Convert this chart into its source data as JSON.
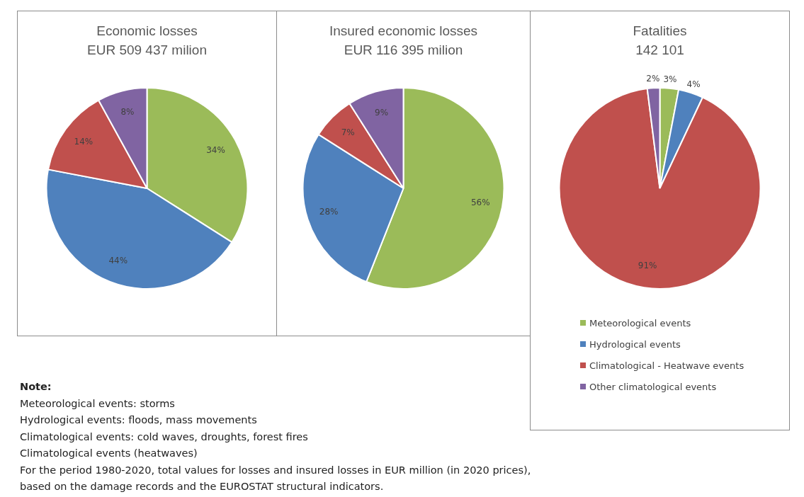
{
  "chart_data": [
    {
      "type": "pie",
      "title": "Economic losses",
      "subtitle": "EUR 509 437 milion",
      "categories": [
        null,
        null,
        null,
        null
      ],
      "values": [
        34,
        44,
        14,
        8
      ],
      "value_labels": [
        "34%",
        "44%",
        "14%",
        "8%"
      ],
      "colors": [
        "#9bbb59",
        "#4f81bd",
        "#c0504d",
        "#8064a2"
      ],
      "legend": false
    },
    {
      "type": "pie",
      "title": "Insured economic losses",
      "subtitle": "EUR 116 395 milion",
      "categories": [
        null,
        null,
        null,
        null
      ],
      "values": [
        56,
        28,
        7,
        9
      ],
      "value_labels": [
        "56%",
        "28%",
        "7%",
        "9%"
      ],
      "colors": [
        "#9bbb59",
        "#4f81bd",
        "#c0504d",
        "#8064a2"
      ],
      "legend": false
    },
    {
      "type": "pie",
      "title": "Fatalities",
      "subtitle": "142 101",
      "categories": [
        "Meteorological events",
        "Hydrological events",
        "Climatological - Heatwave events",
        "Other climatological events"
      ],
      "values": [
        3,
        4,
        91,
        2
      ],
      "value_labels": [
        "3%",
        "4%",
        "91%",
        "2%"
      ],
      "colors": [
        "#9bbb59",
        "#4f81bd",
        "#c0504d",
        "#8064a2"
      ],
      "legend": "bottom"
    },
    {
      "type": "other",
      "title": "Note:",
      "annotations": [
        "Meteorological events: storms",
        "Hydrological events: floods, mass movements",
        "Climatological events: cold waves, droughts, forest fires",
        "Climatological events (heatwaves)",
        "For the period 1980-2020, total values for losses and insured losses in EUR million (in 2020 prices),",
        "based on the damage records and the EUROSTAT structural indicators."
      ]
    }
  ]
}
